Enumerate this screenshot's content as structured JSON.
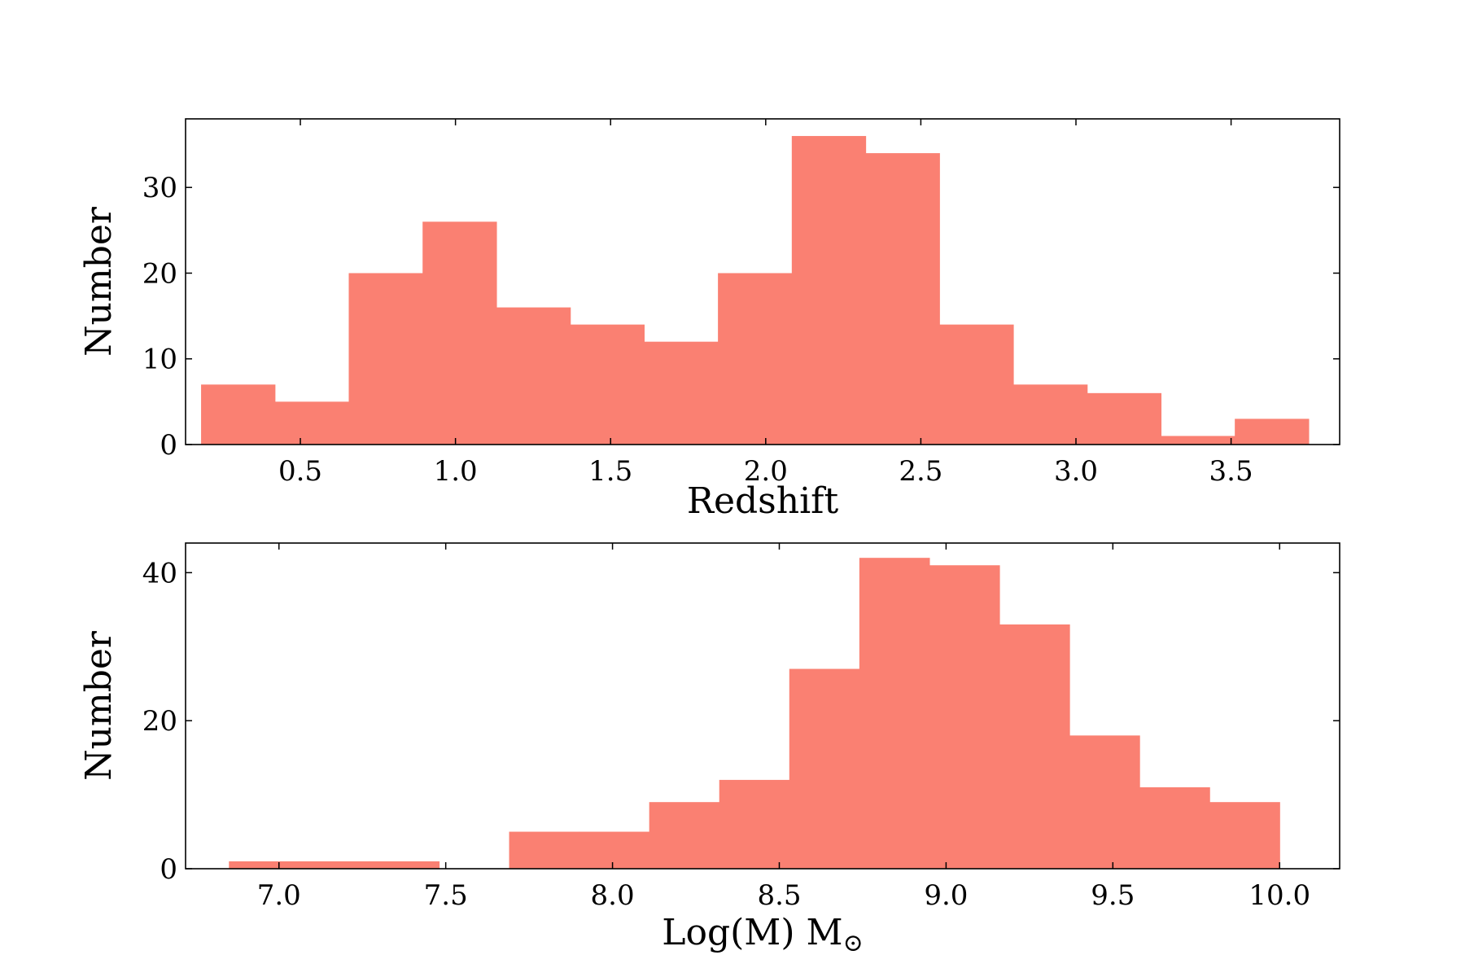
{
  "chart_data": [
    {
      "type": "bar",
      "subtype": "histogram",
      "xlabel": "Redshift",
      "ylabel": "Number",
      "xlim": [
        0.13,
        3.85
      ],
      "ylim": [
        0,
        38
      ],
      "xticks": [
        0.5,
        1.0,
        1.5,
        2.0,
        2.5,
        3.0,
        3.5
      ],
      "xtick_labels": [
        "0.5",
        "1.0",
        "1.5",
        "2.0",
        "2.5",
        "3.0",
        "3.5"
      ],
      "yticks": [
        0,
        10,
        20,
        30
      ],
      "ytick_labels": [
        "0",
        "10",
        "20",
        "30"
      ],
      "bin_edges": [
        0.18,
        0.418,
        0.656,
        0.894,
        1.132,
        1.37,
        1.608,
        1.846,
        2.084,
        2.322,
        2.56,
        2.798,
        3.036,
        3.274,
        3.512,
        3.75
      ],
      "values": [
        7,
        5,
        20,
        26,
        16,
        14,
        12,
        20,
        36,
        34,
        14,
        7,
        6,
        1,
        3
      ],
      "bar_color": "#fa8072",
      "grid": false
    },
    {
      "type": "bar",
      "subtype": "histogram",
      "xlabel": "Log(M) M",
      "xlabel_symbol": "⊙",
      "ylabel": "Number",
      "xlim": [
        6.72,
        10.18
      ],
      "ylim": [
        0,
        44
      ],
      "xticks": [
        7.0,
        7.5,
        8.0,
        8.5,
        9.0,
        9.5,
        10.0
      ],
      "xtick_labels": [
        "7.0",
        "7.5",
        "8.0",
        "8.5",
        "9.0",
        "9.5",
        "10.0"
      ],
      "yticks": [
        0,
        20,
        40
      ],
      "ytick_labels": [
        "0",
        "20",
        "40"
      ],
      "bin_edges": [
        6.85,
        7.06,
        7.27,
        7.48,
        7.69,
        7.9,
        8.11,
        8.32,
        8.53,
        8.74,
        8.95,
        9.16,
        9.37,
        9.58,
        9.79,
        10.0
      ],
      "values": [
        1,
        1,
        1,
        0,
        5,
        5,
        9,
        12,
        27,
        42,
        41,
        33,
        18,
        11,
        9
      ],
      "bar_color": "#fa8072",
      "grid": false
    }
  ]
}
